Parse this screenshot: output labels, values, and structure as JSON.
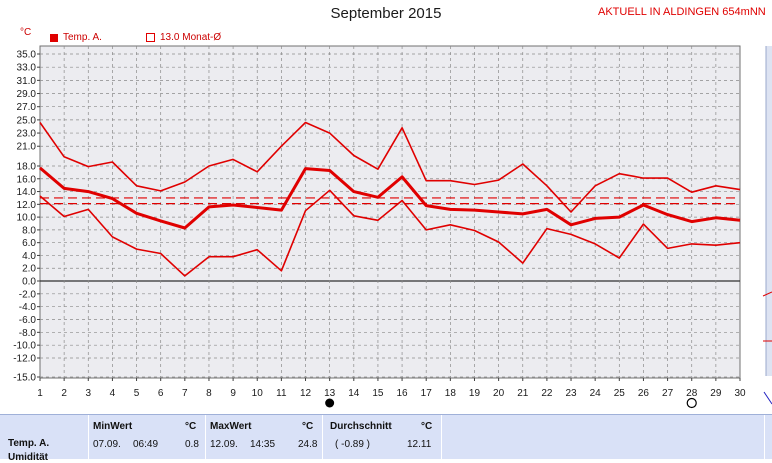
{
  "header": {
    "title": "September 2015",
    "aktuell": "AKTUELL IN ALDINGEN 654mNN",
    "unit": "°C"
  },
  "legend": {
    "series": "Temp. A.",
    "mean": "13.0 Monat-Ø"
  },
  "colors": {
    "series": "#e00000",
    "plot_bg": "#ececf0",
    "grid": "#8a8a8a",
    "table_bg": "#d9e1f7"
  },
  "chart_data": {
    "type": "line",
    "title": "September 2015",
    "ylabel": "°C",
    "xlim": [
      1,
      30
    ],
    "ylim": [
      -15,
      36
    ],
    "x": [
      1,
      2,
      3,
      4,
      5,
      6,
      7,
      8,
      9,
      10,
      11,
      12,
      13,
      14,
      15,
      16,
      17,
      18,
      19,
      20,
      21,
      22,
      23,
      24,
      25,
      26,
      27,
      28,
      29,
      30
    ],
    "y_ticks": [
      35.0,
      33.0,
      31.0,
      29.0,
      27.0,
      25.0,
      23.0,
      21.0,
      18.0,
      16.0,
      14.0,
      12.0,
      10.0,
      8.0,
      6.0,
      4.0,
      2.0,
      0.0,
      -2.0,
      -4.0,
      -6.0,
      -8.0,
      -10.0,
      -12.0,
      -15.0
    ],
    "y_tick_labels": [
      "35.0",
      "33.0",
      "31.0",
      "29.0",
      "27.0",
      "25.0",
      "23.0",
      "21.0",
      "18.0",
      "16.0",
      "14.0",
      "12.0",
      "10.0",
      "8.0",
      "6.0",
      "4.0",
      "2.0",
      "0.0",
      "-2.0",
      "-4.0",
      "-6.0",
      "-8.0",
      "-10.0",
      "-12.0",
      "-15.0"
    ],
    "x_tick_labels": [
      "1",
      "2",
      "3",
      "4",
      "5",
      "6",
      "7",
      "8",
      "9",
      "10",
      "11",
      "12",
      "13",
      "14",
      "15",
      "16",
      "17",
      "18",
      "19",
      "20",
      "21",
      "22",
      "23",
      "24",
      "25",
      "26",
      "27",
      "28",
      "29",
      "30"
    ],
    "grid": true,
    "series": [
      {
        "values": [
          24.6,
          19.4,
          17.9,
          18.6,
          14.9,
          14.1,
          15.5,
          18.0,
          19.0,
          17.1,
          21.0,
          24.6,
          23.0,
          19.6,
          17.5,
          23.8,
          15.7,
          15.7,
          15.1,
          15.8,
          18.3,
          14.9,
          10.8,
          14.9,
          16.8,
          16.1,
          16.1,
          13.9,
          14.9,
          14.3
        ]
      },
      {
        "values": [
          17.7,
          14.5,
          14.0,
          12.9,
          10.6,
          9.4,
          8.3,
          11.6,
          11.9,
          11.5,
          11.1,
          17.6,
          17.3,
          14.0,
          13.1,
          16.3,
          11.8,
          11.2,
          11.1,
          10.8,
          10.5,
          11.2,
          8.8,
          9.8,
          10.0,
          11.9,
          10.4,
          9.3,
          9.9,
          9.5
        ]
      },
      {
        "values": [
          13.3,
          10.1,
          11.2,
          6.9,
          5.0,
          4.3,
          0.8,
          3.8,
          3.8,
          4.9,
          1.6,
          11.0,
          14.2,
          10.2,
          9.5,
          12.6,
          8.0,
          8.8,
          7.9,
          6.1,
          2.8,
          8.2,
          7.3,
          5.8,
          3.6,
          8.9,
          5.1,
          5.8,
          5.6,
          6.0
        ]
      }
    ],
    "reference_lines": [
      13.0,
      12.11
    ],
    "reference_label": "13.0 Monat-Ø",
    "markers": [
      {
        "x": 13,
        "type": "filled-circle"
      },
      {
        "x": 28,
        "type": "open-circle"
      }
    ]
  },
  "stats": {
    "row_label": "Temp. A.",
    "row_label2": "Umidität",
    "min": {
      "header": "MinWert",
      "unit": "°C",
      "date": "07.09.",
      "time": "06:49",
      "value": "0.8"
    },
    "max": {
      "header": "MaxWert",
      "unit": "°C",
      "date": "12.09.",
      "time": "14:35",
      "value": "24.8"
    },
    "avg": {
      "header": "Durchschnitt",
      "unit": "°C",
      "delta": "( -0.89 )",
      "value": "12.11"
    }
  }
}
